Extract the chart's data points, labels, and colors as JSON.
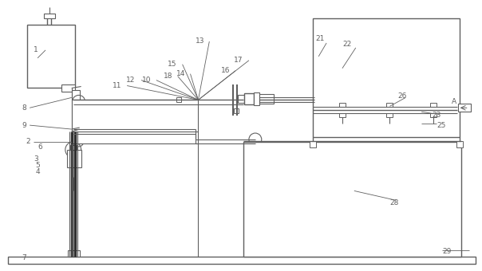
{
  "lc": "#606060",
  "bg": "#ffffff",
  "figsize": [
    6.04,
    3.4
  ],
  "dpi": 100
}
